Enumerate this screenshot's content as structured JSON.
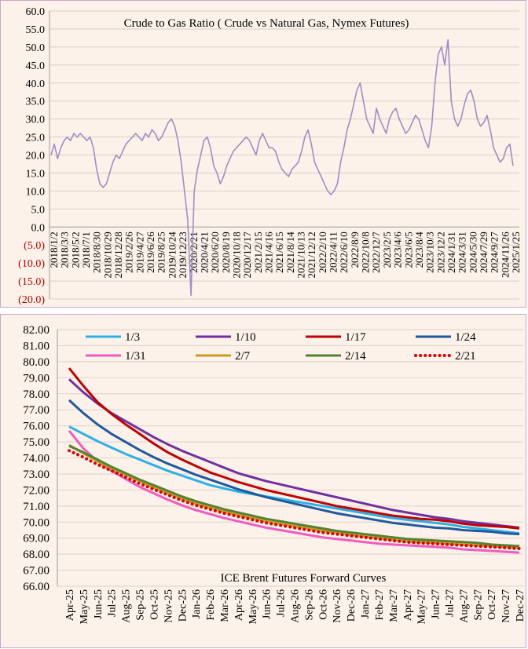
{
  "chart_data": [
    {
      "type": "line",
      "title": "Crude to Gas Ratio ( Crude vs Natural Gas, Nymex Futures)",
      "ylim": [
        -20,
        60
      ],
      "y_tick_labels": [
        "60.0",
        "55.0",
        "50.0",
        "45.0",
        "40.0",
        "35.0",
        "30.0",
        "25.0",
        "20.0",
        "15.0",
        "10.0",
        "5.0",
        "0.0",
        "(5.0)",
        "(10.0)",
        "(15.0)",
        "(20.0)"
      ],
      "y_tick_values": [
        60,
        55,
        50,
        45,
        40,
        35,
        30,
        25,
        20,
        15,
        10,
        5,
        0,
        -5,
        -10,
        -15,
        -20
      ],
      "negative_tick_color": "#c00000",
      "x_tick_labels": [
        "2018/1/2",
        "2018/3/3",
        "2018/5/2",
        "2018/7/1",
        "2018/8/30",
        "2018/10/29",
        "2018/12/28",
        "2019/2/26",
        "2019/4/27",
        "2019/6/26",
        "2019/8/25",
        "2019/10/24",
        "2019/12/23",
        "2020/2/21",
        "2020/4/21",
        "2020/6/20",
        "2020/8/19",
        "2020/10/18",
        "2020/12/17",
        "2021/2/15",
        "2021/4/16",
        "2021/6/15",
        "2021/8/14",
        "2021/10/13",
        "2021/12/12",
        "2022/2/10",
        "2022/4/11",
        "2022/6/10",
        "2022/8/9",
        "2022/10/8",
        "2022/12/7",
        "2023/2/5",
        "2023/4/6",
        "2023/6/5",
        "2023/8/4",
        "2023/10/3",
        "2023/12/2",
        "2024/1/31",
        "2024/3/31",
        "2024/5/30",
        "2024/7/29",
        "2024/9/27",
        "2024/11/26",
        "2025/1/25"
      ],
      "series_color": "#a48bc4",
      "series": [
        {
          "values": [
            20,
            23,
            19,
            22,
            24,
            25,
            24,
            26,
            25,
            26,
            25,
            24,
            25,
            22,
            16,
            12,
            11,
            12,
            15,
            18,
            20,
            19,
            21,
            23,
            24,
            25,
            26,
            25,
            24,
            26,
            25,
            27,
            26,
            24,
            25,
            27,
            29,
            30,
            28,
            24,
            18,
            10,
            2,
            -19,
            10,
            16,
            20,
            24,
            25,
            22,
            17,
            15,
            12,
            14,
            17,
            19,
            21,
            22,
            23,
            24,
            25,
            24,
            22,
            20,
            24,
            26,
            24,
            22,
            22,
            21,
            18,
            16,
            15,
            14,
            16,
            17,
            18,
            21,
            25,
            27,
            23,
            18,
            16,
            14,
            12,
            10,
            9,
            10,
            12,
            18,
            22,
            27,
            30,
            34,
            38,
            40,
            35,
            30,
            28,
            26,
            33,
            30,
            28,
            26,
            30,
            32,
            33,
            30,
            28,
            26,
            27,
            29,
            31,
            30,
            27,
            24,
            22,
            28,
            40,
            48,
            50,
            45,
            52,
            35,
            30,
            28,
            30,
            34,
            37,
            38,
            35,
            30,
            28,
            29,
            31,
            27,
            22,
            20,
            18,
            19,
            22,
            23,
            17
          ]
        }
      ]
    },
    {
      "type": "line",
      "title": "ICE Brent Futures Forward Curves",
      "ylim": [
        66,
        82
      ],
      "y_tick_labels": [
        "82.00",
        "81.00",
        "80.00",
        "79.00",
        "78.00",
        "77.00",
        "76.00",
        "75.00",
        "74.00",
        "73.00",
        "72.00",
        "71.00",
        "70.00",
        "69.00",
        "68.00",
        "67.00",
        "66.00"
      ],
      "y_tick_values": [
        82,
        81,
        80,
        79,
        78,
        77,
        76,
        75,
        74,
        73,
        72,
        71,
        70,
        69,
        68,
        67,
        66
      ],
      "categories": [
        "Apr-25",
        "May-25",
        "Jun-25",
        "Jul-25",
        "Aug-25",
        "Sep-25",
        "Oct-25",
        "Nov-25",
        "Dec-25",
        "Jan-26",
        "Feb-26",
        "Mar-26",
        "Apr-26",
        "May-26",
        "Jun-26",
        "Jul-26",
        "Aug-26",
        "Sep-26",
        "Oct-26",
        "Nov-26",
        "Dec-26",
        "Jan-27",
        "Feb-27",
        "Mar-27",
        "Apr-27",
        "May-27",
        "Jun-27",
        "Jul-27",
        "Aug-27",
        "Sep-27",
        "Oct-27",
        "Nov-27",
        "Dec-27"
      ],
      "legend_placement": "top",
      "series": [
        {
          "name": "1/3",
          "color": "#2cb1e6",
          "dash": "solid",
          "values": [
            75.95,
            75.5,
            75.05,
            74.65,
            74.25,
            73.9,
            73.55,
            73.2,
            72.9,
            72.6,
            72.3,
            72.1,
            71.9,
            71.75,
            71.6,
            71.45,
            71.3,
            71.15,
            71.0,
            70.85,
            70.7,
            70.55,
            70.4,
            70.25,
            70.15,
            70.05,
            69.95,
            69.85,
            69.7,
            69.6,
            69.5,
            69.4,
            69.3
          ]
        },
        {
          "name": "1/10",
          "color": "#7030a0",
          "dash": "solid",
          "values": [
            78.9,
            78.1,
            77.4,
            76.8,
            76.3,
            75.8,
            75.3,
            74.85,
            74.45,
            74.1,
            73.75,
            73.4,
            73.05,
            72.8,
            72.55,
            72.35,
            72.15,
            71.95,
            71.75,
            71.55,
            71.35,
            71.15,
            70.95,
            70.75,
            70.6,
            70.45,
            70.3,
            70.2,
            70.05,
            69.95,
            69.85,
            69.75,
            69.65
          ]
        },
        {
          "name": "1/17",
          "color": "#c00000",
          "dash": "solid",
          "values": [
            79.6,
            78.5,
            77.5,
            76.75,
            76.1,
            75.5,
            74.9,
            74.35,
            73.9,
            73.5,
            73.1,
            72.8,
            72.5,
            72.25,
            72.0,
            71.8,
            71.6,
            71.4,
            71.2,
            71.0,
            70.85,
            70.7,
            70.55,
            70.4,
            70.3,
            70.2,
            70.15,
            70.05,
            69.9,
            69.8,
            69.75,
            69.7,
            69.6
          ]
        },
        {
          "name": "1/24",
          "color": "#1f5aa0",
          "dash": "solid",
          "values": [
            77.6,
            76.8,
            76.1,
            75.5,
            75.0,
            74.5,
            74.05,
            73.65,
            73.3,
            72.95,
            72.65,
            72.35,
            72.05,
            71.8,
            71.55,
            71.35,
            71.15,
            70.95,
            70.75,
            70.55,
            70.4,
            70.25,
            70.1,
            69.95,
            69.85,
            69.75,
            69.65,
            69.6,
            69.5,
            69.45,
            69.4,
            69.3,
            69.25
          ]
        },
        {
          "name": "1/31",
          "color": "#f05bc0",
          "dash": "solid",
          "values": [
            75.7,
            74.6,
            73.8,
            73.2,
            72.7,
            72.2,
            71.8,
            71.4,
            71.05,
            70.75,
            70.5,
            70.25,
            70.05,
            69.85,
            69.65,
            69.5,
            69.35,
            69.2,
            69.05,
            68.95,
            68.85,
            68.75,
            68.65,
            68.6,
            68.55,
            68.5,
            68.45,
            68.4,
            68.3,
            68.25,
            68.2,
            68.15,
            68.1
          ]
        },
        {
          "name": "2/7",
          "color": "#c89a1e",
          "dash": "solid",
          "values": [
            74.8,
            74.3,
            73.8,
            73.35,
            72.95,
            72.55,
            72.15,
            71.8,
            71.45,
            71.15,
            70.9,
            70.65,
            70.45,
            70.25,
            70.05,
            69.9,
            69.75,
            69.6,
            69.45,
            69.35,
            69.2,
            69.1,
            69.0,
            68.9,
            68.8,
            68.75,
            68.7,
            68.65,
            68.6,
            68.55,
            68.5,
            68.45,
            68.4
          ]
        },
        {
          "name": "2/14",
          "color": "#548235",
          "dash": "solid",
          "values": [
            74.75,
            74.35,
            73.9,
            73.45,
            73.05,
            72.65,
            72.3,
            71.95,
            71.6,
            71.3,
            71.05,
            70.8,
            70.6,
            70.4,
            70.2,
            70.05,
            69.9,
            69.75,
            69.6,
            69.45,
            69.35,
            69.25,
            69.15,
            69.05,
            68.95,
            68.9,
            68.85,
            68.8,
            68.75,
            68.7,
            68.6,
            68.55,
            68.5
          ]
        },
        {
          "name": "2/21",
          "color": "#e00000",
          "dash": "dotted",
          "values": [
            74.45,
            74.05,
            73.6,
            73.2,
            72.8,
            72.4,
            72.05,
            71.7,
            71.35,
            71.05,
            70.8,
            70.55,
            70.35,
            70.15,
            69.95,
            69.8,
            69.65,
            69.5,
            69.35,
            69.25,
            69.15,
            69.05,
            68.95,
            68.85,
            68.75,
            68.7,
            68.65,
            68.6,
            68.55,
            68.5,
            68.45,
            68.4,
            68.35
          ]
        }
      ]
    }
  ]
}
